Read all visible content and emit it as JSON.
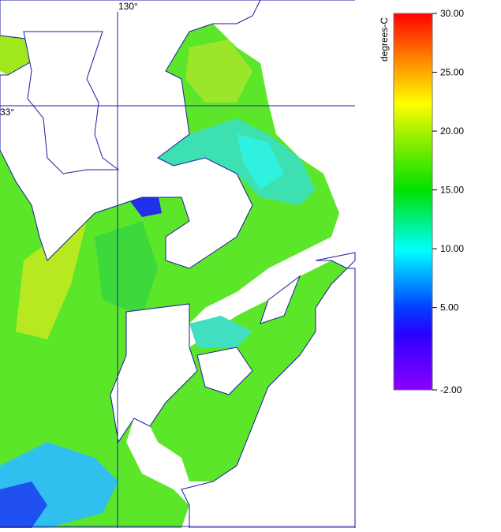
{
  "map": {
    "lon_label": "130°",
    "lat_label": "33°",
    "colorbar": {
      "label": "degrees-C",
      "range": [
        -2,
        30
      ],
      "ticks": [
        {
          "value": 30,
          "label": "30.00"
        },
        {
          "value": 25,
          "label": "25.00"
        },
        {
          "value": 20,
          "label": "20.00"
        },
        {
          "value": 15,
          "label": "15.00"
        },
        {
          "value": 10,
          "label": "10.00"
        },
        {
          "value": 5,
          "label": "5.00"
        },
        {
          "value": -2,
          "label": "-2.00"
        }
      ]
    }
  }
}
